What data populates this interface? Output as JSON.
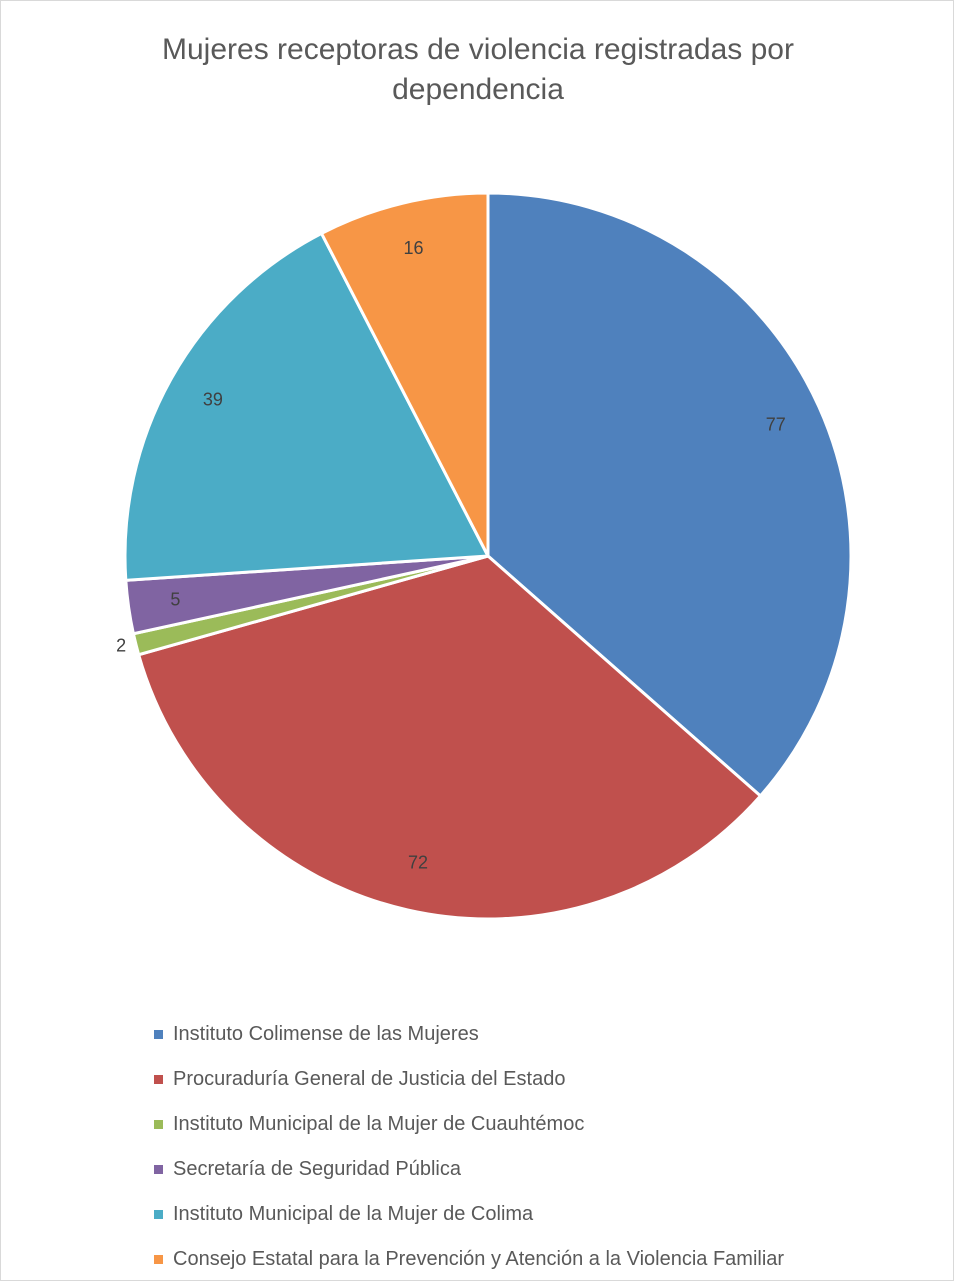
{
  "chart_data": {
    "type": "pie",
    "title_lines": [
      "Mujeres receptoras de violencia registradas por",
      "dependencia"
    ],
    "slices": [
      {
        "label": "Instituto Colimense de las Mujeres",
        "value": 77,
        "color": "#4f81bd"
      },
      {
        "label": "Procuraduría General de Justicia del Estado",
        "value": 72,
        "color": "#c0504d"
      },
      {
        "label": "Instituto Municipal de la Mujer de Cuauhtémoc",
        "value": 2,
        "color": "#9bbb59"
      },
      {
        "label": "Secretaría de Seguridad Pública",
        "value": 5,
        "color": "#8064a2"
      },
      {
        "label": "Instituto Municipal de la Mujer de Colima",
        "value": 39,
        "color": "#4bacc6"
      },
      {
        "label": "Consejo Estatal para la Prevención y Atención a la Violencia Familiar",
        "value": 16,
        "color": "#f79646"
      }
    ],
    "legend_position": "bottom"
  }
}
